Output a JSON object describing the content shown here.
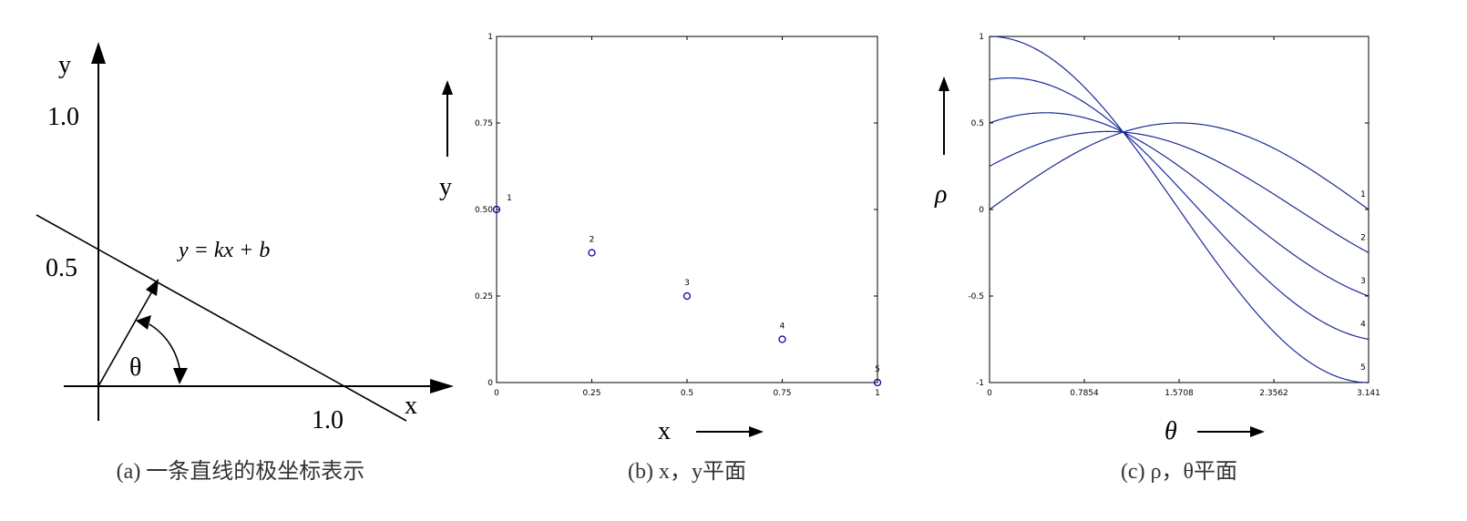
{
  "panel_a": {
    "caption": "(a) 一条直线的极坐标表示",
    "y_axis_label": "y",
    "x_axis_label": "x",
    "y_tick_1": "1.0",
    "y_tick_05": "0.5",
    "x_tick_1": "1.0",
    "theta_label": "θ",
    "equation": "y = kx + b"
  },
  "panel_b": {
    "caption": "(b) x，y平面",
    "x_axis_label": "x",
    "y_axis_label": "y",
    "y_ticks": [
      "1",
      "0.75",
      "0.50",
      "0.25",
      "0"
    ],
    "x_ticks": [
      "0",
      "0.25",
      "0.5",
      "0.75",
      "1"
    ],
    "point_labels": [
      "1",
      "2",
      "3",
      "4",
      "5"
    ]
  },
  "panel_c": {
    "caption": "(c) ρ，θ平面",
    "x_axis_label": "θ",
    "y_axis_label": "ρ",
    "y_ticks": [
      "1",
      "0.5",
      "0",
      "-0.5",
      "-1"
    ],
    "x_ticks": [
      "0",
      "0.7854",
      "1.5708",
      "2.3562",
      "3.141"
    ],
    "curve_labels": [
      "1",
      "2",
      "3",
      "4",
      "5"
    ]
  },
  "chart_data": [
    {
      "type": "scatter",
      "x": [
        0,
        0.25,
        0.5,
        0.75,
        1
      ],
      "y": [
        0.5,
        0.375,
        0.25,
        0.125,
        0
      ],
      "labels": [
        "1",
        "2",
        "3",
        "4",
        "5"
      ],
      "xlim": [
        0,
        1
      ],
      "ylim": [
        0,
        1
      ],
      "xlabel": "x",
      "ylabel": "y",
      "marker_color": "#0000aa"
    },
    {
      "type": "line",
      "x_range": [
        0,
        3.141
      ],
      "ylim": [
        -1,
        1
      ],
      "xlabel": "θ",
      "ylabel": "ρ",
      "line_color": "#1a2a9a",
      "series": [
        {
          "name": "1",
          "point_x": 0,
          "point_y": 0.5
        },
        {
          "name": "2",
          "point_x": 0.25,
          "point_y": 0.375
        },
        {
          "name": "3",
          "point_x": 0.5,
          "point_y": 0.25
        },
        {
          "name": "4",
          "point_x": 0.75,
          "point_y": 0.125
        },
        {
          "name": "5",
          "point_x": 1,
          "point_y": 0
        }
      ]
    }
  ]
}
